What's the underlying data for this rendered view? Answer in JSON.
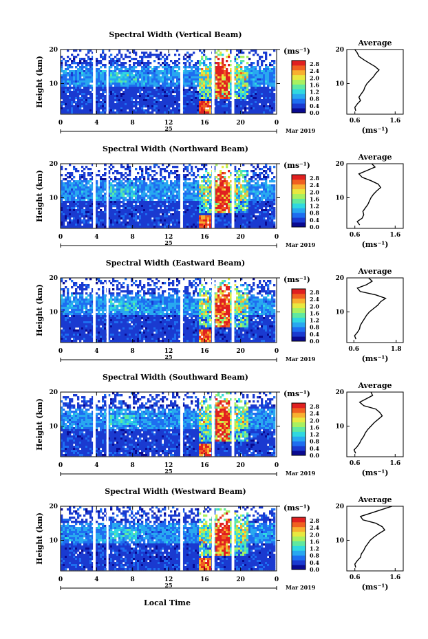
{
  "chart_data": {
    "type": "heatmap",
    "colorbar": {
      "unit": "(ms⁻¹)",
      "ticks": [
        "2.8",
        "2.4",
        "2.0",
        "1.6",
        "1.2",
        "0.8",
        "0.4",
        "0.0"
      ],
      "range": [
        0.0,
        3.0
      ]
    },
    "x_axis": {
      "ticks": [
        "0",
        "4",
        "8",
        "12",
        "16",
        "20",
        "0"
      ],
      "range": [
        0,
        24
      ],
      "date_day": "25",
      "date_month_year": "Mar 2019",
      "label": "Local Time"
    },
    "y_axis": {
      "label": "Height (km)",
      "ticks": [
        "20",
        "10"
      ],
      "range": [
        1,
        20
      ]
    },
    "avg_panel": {
      "title": "Average",
      "y_ticks": [
        "20",
        "10"
      ],
      "xlabel": "(ms⁻¹)"
    },
    "gaps_hours": [
      [
        3.6,
        3.9
      ],
      [
        5.1,
        5.3
      ],
      [
        13.3,
        13.6
      ],
      [
        16.8,
        17.1
      ],
      [
        19.0,
        19.3
      ]
    ],
    "colors": [
      "#0a0a90",
      "#1a3ad0",
      "#1e6ef0",
      "#28a8f0",
      "#30d8e0",
      "#60e8a0",
      "#a8f060",
      "#e8e840",
      "#f8b030",
      "#f06020",
      "#e02020"
    ],
    "panels": [
      {
        "title": "Spectral Width (Vertical Beam)",
        "avg_xticks": [
          "0.6",
          "1.6"
        ],
        "avg_xrange": [
          0.4,
          1.8
        ],
        "avg_profile": [
          [
            0.62,
            2
          ],
          [
            0.6,
            3
          ],
          [
            0.66,
            4
          ],
          [
            0.74,
            5
          ],
          [
            0.7,
            6
          ],
          [
            0.76,
            7
          ],
          [
            0.82,
            8
          ],
          [
            0.85,
            9
          ],
          [
            0.9,
            10
          ],
          [
            0.98,
            11
          ],
          [
            1.06,
            12
          ],
          [
            1.12,
            13
          ],
          [
            1.2,
            14
          ],
          [
            1.1,
            15
          ],
          [
            0.96,
            16
          ],
          [
            0.82,
            17
          ],
          [
            0.7,
            18
          ],
          [
            0.66,
            19
          ],
          [
            0.6,
            20
          ]
        ]
      },
      {
        "title": "Spectral Width (Northward Beam)",
        "avg_xticks": [
          "0.6",
          "1.6"
        ],
        "avg_xrange": [
          0.4,
          1.8
        ],
        "avg_profile": [
          [
            0.72,
            2
          ],
          [
            0.66,
            3
          ],
          [
            0.78,
            4
          ],
          [
            0.82,
            5
          ],
          [
            0.8,
            6
          ],
          [
            0.86,
            7
          ],
          [
            0.92,
            8
          ],
          [
            0.96,
            9
          ],
          [
            1.0,
            10
          ],
          [
            1.06,
            11
          ],
          [
            1.14,
            12
          ],
          [
            1.24,
            13
          ],
          [
            1.18,
            14
          ],
          [
            1.0,
            15
          ],
          [
            0.78,
            16
          ],
          [
            0.7,
            17
          ],
          [
            0.9,
            18
          ],
          [
            1.1,
            19
          ],
          [
            1.02,
            20
          ]
        ]
      },
      {
        "title": "Spectral Width (Eastward Beam)",
        "avg_xticks": [
          "0.6",
          "1.8"
        ],
        "avg_xrange": [
          0.4,
          2.0
        ],
        "avg_profile": [
          [
            0.66,
            2
          ],
          [
            0.62,
            3
          ],
          [
            0.7,
            4
          ],
          [
            0.76,
            5
          ],
          [
            0.78,
            6
          ],
          [
            0.84,
            7
          ],
          [
            0.9,
            8
          ],
          [
            0.96,
            9
          ],
          [
            1.04,
            10
          ],
          [
            1.16,
            11
          ],
          [
            1.28,
            12
          ],
          [
            1.36,
            13
          ],
          [
            1.5,
            14
          ],
          [
            1.22,
            15
          ],
          [
            0.78,
            16
          ],
          [
            0.7,
            17
          ],
          [
            0.96,
            18
          ],
          [
            1.12,
            19
          ],
          [
            1.02,
            20
          ]
        ]
      },
      {
        "title": "Spectral Width (Southward Beam)",
        "avg_xticks": [
          "0.6",
          "1.6"
        ],
        "avg_xrange": [
          0.4,
          1.8
        ],
        "avg_profile": [
          [
            0.62,
            2
          ],
          [
            0.58,
            3
          ],
          [
            0.66,
            4
          ],
          [
            0.72,
            5
          ],
          [
            0.76,
            6
          ],
          [
            0.82,
            7
          ],
          [
            0.86,
            8
          ],
          [
            0.92,
            9
          ],
          [
            1.0,
            10
          ],
          [
            1.08,
            11
          ],
          [
            1.18,
            12
          ],
          [
            1.28,
            13
          ],
          [
            1.22,
            14
          ],
          [
            1.12,
            15
          ],
          [
            0.82,
            16
          ],
          [
            0.72,
            17
          ],
          [
            0.88,
            18
          ],
          [
            1.04,
            19
          ],
          [
            1.0,
            20
          ]
        ]
      },
      {
        "title": "Spectral Width (Westward Beam)",
        "avg_xticks": [
          "0.6",
          "1.6"
        ],
        "avg_xrange": [
          0.4,
          1.8
        ],
        "avg_profile": [
          [
            0.62,
            2
          ],
          [
            0.6,
            3
          ],
          [
            0.66,
            4
          ],
          [
            0.74,
            5
          ],
          [
            0.76,
            6
          ],
          [
            0.82,
            7
          ],
          [
            0.86,
            8
          ],
          [
            0.92,
            9
          ],
          [
            0.98,
            10
          ],
          [
            1.08,
            11
          ],
          [
            1.2,
            12
          ],
          [
            1.34,
            13
          ],
          [
            1.28,
            14
          ],
          [
            1.12,
            15
          ],
          [
            0.8,
            16
          ],
          [
            0.74,
            17
          ],
          [
            1.0,
            18
          ],
          [
            1.26,
            19
          ],
          [
            1.52,
            20
          ]
        ]
      }
    ]
  }
}
